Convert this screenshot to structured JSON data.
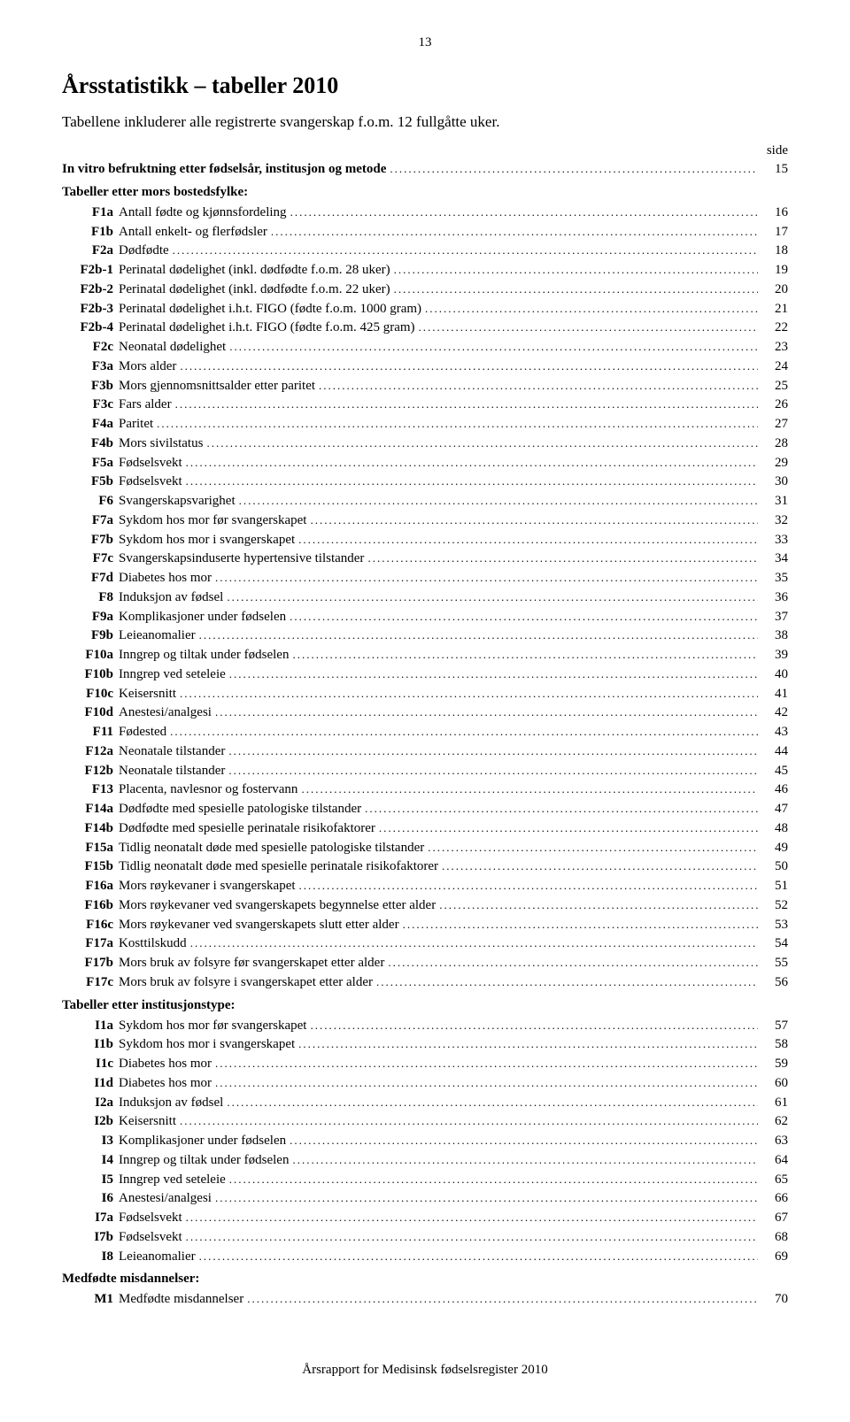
{
  "pageNumber": "13",
  "title": "Årsstatistikk – tabeller 2010",
  "subtitle": "Tabellene inkluderer alle registrerte svangerskap f.o.m. 12 fullgåtte uker.",
  "sideLabel": "side",
  "sections": [
    {
      "intro": {
        "label": "In vitro befruktning etter fødselsår, institusjon og metode",
        "page": "15"
      },
      "header": "Tabeller etter mors bostedsfylke:",
      "rows": [
        {
          "code": "F1a",
          "label": "Antall fødte og kjønnsfordeling",
          "page": "16"
        },
        {
          "code": "F1b",
          "label": "Antall enkelt- og flerfødsler",
          "page": "17"
        },
        {
          "code": "F2a",
          "label": "Dødfødte",
          "page": "18"
        },
        {
          "code": "F2b-1",
          "label": "Perinatal dødelighet (inkl. dødfødte f.o.m. 28 uker)",
          "page": "19"
        },
        {
          "code": "F2b-2",
          "label": "Perinatal dødelighet (inkl. dødfødte f.o.m. 22 uker)",
          "page": "20"
        },
        {
          "code": "F2b-3",
          "label": "Perinatal dødelighet i.h.t. FIGO (fødte f.o.m. 1000 gram)",
          "page": "21"
        },
        {
          "code": "F2b-4",
          "label": "Perinatal dødelighet i.h.t. FIGO (fødte f.o.m. 425 gram)",
          "page": "22"
        },
        {
          "code": "F2c",
          "label": "Neonatal dødelighet",
          "page": "23"
        },
        {
          "code": "F3a",
          "label": "Mors alder",
          "page": "24"
        },
        {
          "code": "F3b",
          "label": "Mors gjennomsnittsalder etter paritet",
          "page": "25"
        },
        {
          "code": "F3c",
          "label": "Fars alder",
          "page": "26"
        },
        {
          "code": "F4a",
          "label": "Paritet",
          "page": "27"
        },
        {
          "code": "F4b",
          "label": "Mors sivilstatus",
          "page": "28"
        },
        {
          "code": "F5a",
          "label": "Fødselsvekt",
          "page": "29"
        },
        {
          "code": "F5b",
          "label": "Fødselsvekt",
          "page": "30"
        },
        {
          "code": "F6",
          "label": "Svangerskapsvarighet",
          "page": "31"
        },
        {
          "code": "F7a",
          "label": "Sykdom hos mor før svangerskapet",
          "page": "32"
        },
        {
          "code": "F7b",
          "label": "Sykdom hos mor i svangerskapet",
          "page": "33"
        },
        {
          "code": "F7c",
          "label": "Svangerskapsinduserte hypertensive tilstander",
          "page": "34"
        },
        {
          "code": "F7d",
          "label": "Diabetes hos mor",
          "page": "35"
        },
        {
          "code": "F8",
          "label": "Induksjon av fødsel",
          "page": "36"
        },
        {
          "code": "F9a",
          "label": "Komplikasjoner under fødselen",
          "page": "37"
        },
        {
          "code": "F9b",
          "label": "Leieanomalier",
          "page": "38"
        },
        {
          "code": "F10a",
          "label": "Inngrep og tiltak under fødselen",
          "page": "39"
        },
        {
          "code": "F10b",
          "label": "Inngrep ved seteleie",
          "page": "40"
        },
        {
          "code": "F10c",
          "label": "Keisersnitt",
          "page": "41"
        },
        {
          "code": "F10d",
          "label": "Anestesi/analgesi",
          "page": "42"
        },
        {
          "code": "F11",
          "label": "Fødested",
          "page": "43"
        },
        {
          "code": "F12a",
          "label": "Neonatale tilstander",
          "page": "44"
        },
        {
          "code": "F12b",
          "label": "Neonatale tilstander",
          "page": "45"
        },
        {
          "code": "F13",
          "label": "Placenta, navlesnor og fostervann",
          "page": "46"
        },
        {
          "code": "F14a",
          "label": "Dødfødte med spesielle patologiske tilstander",
          "page": "47"
        },
        {
          "code": "F14b",
          "label": "Dødfødte med spesielle perinatale risikofaktorer",
          "page": "48"
        },
        {
          "code": "F15a",
          "label": "Tidlig neonatalt døde med spesielle patologiske tilstander",
          "page": "49"
        },
        {
          "code": "F15b",
          "label": "Tidlig neonatalt døde med spesielle perinatale risikofaktorer",
          "page": "50"
        },
        {
          "code": "F16a",
          "label": "Mors røykevaner i svangerskapet",
          "page": "51"
        },
        {
          "code": "F16b",
          "label": "Mors røykevaner ved svangerskapets begynnelse etter alder",
          "page": "52"
        },
        {
          "code": "F16c",
          "label": "Mors røykevaner ved svangerskapets slutt etter alder",
          "page": "53"
        },
        {
          "code": "F17a",
          "label": "Kosttilskudd",
          "page": "54"
        },
        {
          "code": "F17b",
          "label": "Mors bruk av folsyre før svangerskapet etter alder",
          "page": "55"
        },
        {
          "code": "F17c",
          "label": "Mors bruk av folsyre i svangerskapet etter alder",
          "page": "56"
        }
      ]
    },
    {
      "header": "Tabeller etter institusjonstype:",
      "rows": [
        {
          "code": "I1a",
          "label": "Sykdom hos mor før svangerskapet",
          "page": "57"
        },
        {
          "code": "I1b",
          "label": "Sykdom hos mor i svangerskapet",
          "page": "58"
        },
        {
          "code": "I1c",
          "label": "Diabetes hos mor",
          "page": "59"
        },
        {
          "code": "I1d",
          "label": "Diabetes hos mor",
          "page": "60"
        },
        {
          "code": "I2a",
          "label": "Induksjon av fødsel",
          "page": "61"
        },
        {
          "code": "I2b",
          "label": "Keisersnitt",
          "page": "62"
        },
        {
          "code": "I3",
          "label": "Komplikasjoner under fødselen",
          "page": "63"
        },
        {
          "code": "I4",
          "label": "Inngrep og tiltak under fødselen",
          "page": "64"
        },
        {
          "code": "I5",
          "label": "Inngrep ved seteleie",
          "page": "65"
        },
        {
          "code": "I6",
          "label": "Anestesi/analgesi",
          "page": "66"
        },
        {
          "code": "I7a",
          "label": "Fødselsvekt",
          "page": "67"
        },
        {
          "code": "I7b",
          "label": "Fødselsvekt",
          "page": "68"
        },
        {
          "code": "I8",
          "label": "Leieanomalier",
          "page": "69"
        }
      ]
    },
    {
      "header": "Medfødte misdannelser:",
      "rows": [
        {
          "code": "M1",
          "label": "Medfødte misdannelser",
          "page": "70"
        }
      ]
    }
  ],
  "footer": "Årsrapport for Medisinsk fødselsregister 2010"
}
